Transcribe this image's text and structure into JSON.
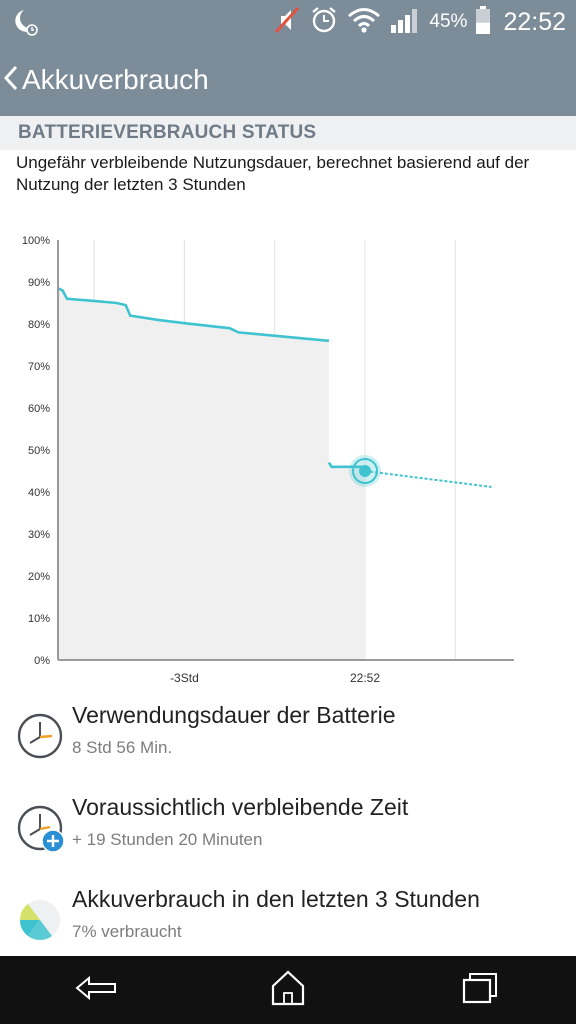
{
  "status_bar": {
    "battery_percent": "45%",
    "time": "22:52",
    "icons": [
      "moon-clock-icon",
      "mute-icon",
      "alarm-icon",
      "wifi-icon",
      "signal-icon",
      "battery-icon"
    ],
    "battery_level": 0.45
  },
  "action_bar": {
    "title": "Akkuverbrauch"
  },
  "section": {
    "title": "BATTERIEVERBRAUCH STATUS",
    "description": "Ungefähr verbleibende Nutzungsdauer, berechnet basierend auf der Nutzung der letzten 3 Stunden"
  },
  "chart_data": {
    "type": "line",
    "y_axis_labels": [
      "100%",
      "90%",
      "80%",
      "70%",
      "60%",
      "50%",
      "40%",
      "30%",
      "20%",
      "10%",
      "0%"
    ],
    "x_axis_labels": [
      "-3Std",
      "22:52"
    ],
    "ylim": [
      0,
      100
    ],
    "xlim_hours": [
      -3.4,
      1.65
    ],
    "grid": true,
    "series": [
      {
        "kind": "measured",
        "color": "#3fc4cf",
        "points": [
          [
            -3.4,
            88.5
          ],
          [
            -3.35,
            88
          ],
          [
            -3.3,
            86
          ],
          [
            -3.0,
            85.5
          ],
          [
            -2.75,
            85
          ],
          [
            -2.65,
            84.5
          ],
          [
            -2.6,
            82
          ],
          [
            -2.3,
            81
          ],
          [
            -2.0,
            80.2
          ],
          [
            -1.5,
            79
          ],
          [
            -1.4,
            78
          ],
          [
            -0.8,
            76.8
          ],
          [
            -0.4,
            76
          ]
        ]
      },
      {
        "kind": "measured",
        "color": "#3fc4cf",
        "points": [
          [
            -0.4,
            47
          ],
          [
            -0.37,
            46
          ],
          [
            0.0,
            46
          ],
          [
            0.0,
            45
          ]
        ]
      },
      {
        "kind": "projected",
        "color": "#3fc4cf",
        "points": [
          [
            0.0,
            45
          ],
          [
            1.4,
            41.2
          ]
        ]
      }
    ],
    "current_marker": {
      "x": 0.0,
      "y": 45
    }
  },
  "items": [
    {
      "title": "Verwendungsdauer der Batterie",
      "subtitle": "8 Std 56 Min.",
      "icon": "clock-icon"
    },
    {
      "title": "Voraussichtlich verbleibende Zeit",
      "subtitle": "+ 19 Stunden 20 Minuten",
      "icon": "clock-plus-icon"
    },
    {
      "title": "Akkuverbrauch in den letzten 3 Stunden",
      "subtitle": "7% verbraucht",
      "icon": "pie-chart-icon"
    }
  ],
  "nav_bar": {
    "buttons": [
      "back-icon",
      "home-icon",
      "recent-apps-icon"
    ]
  }
}
